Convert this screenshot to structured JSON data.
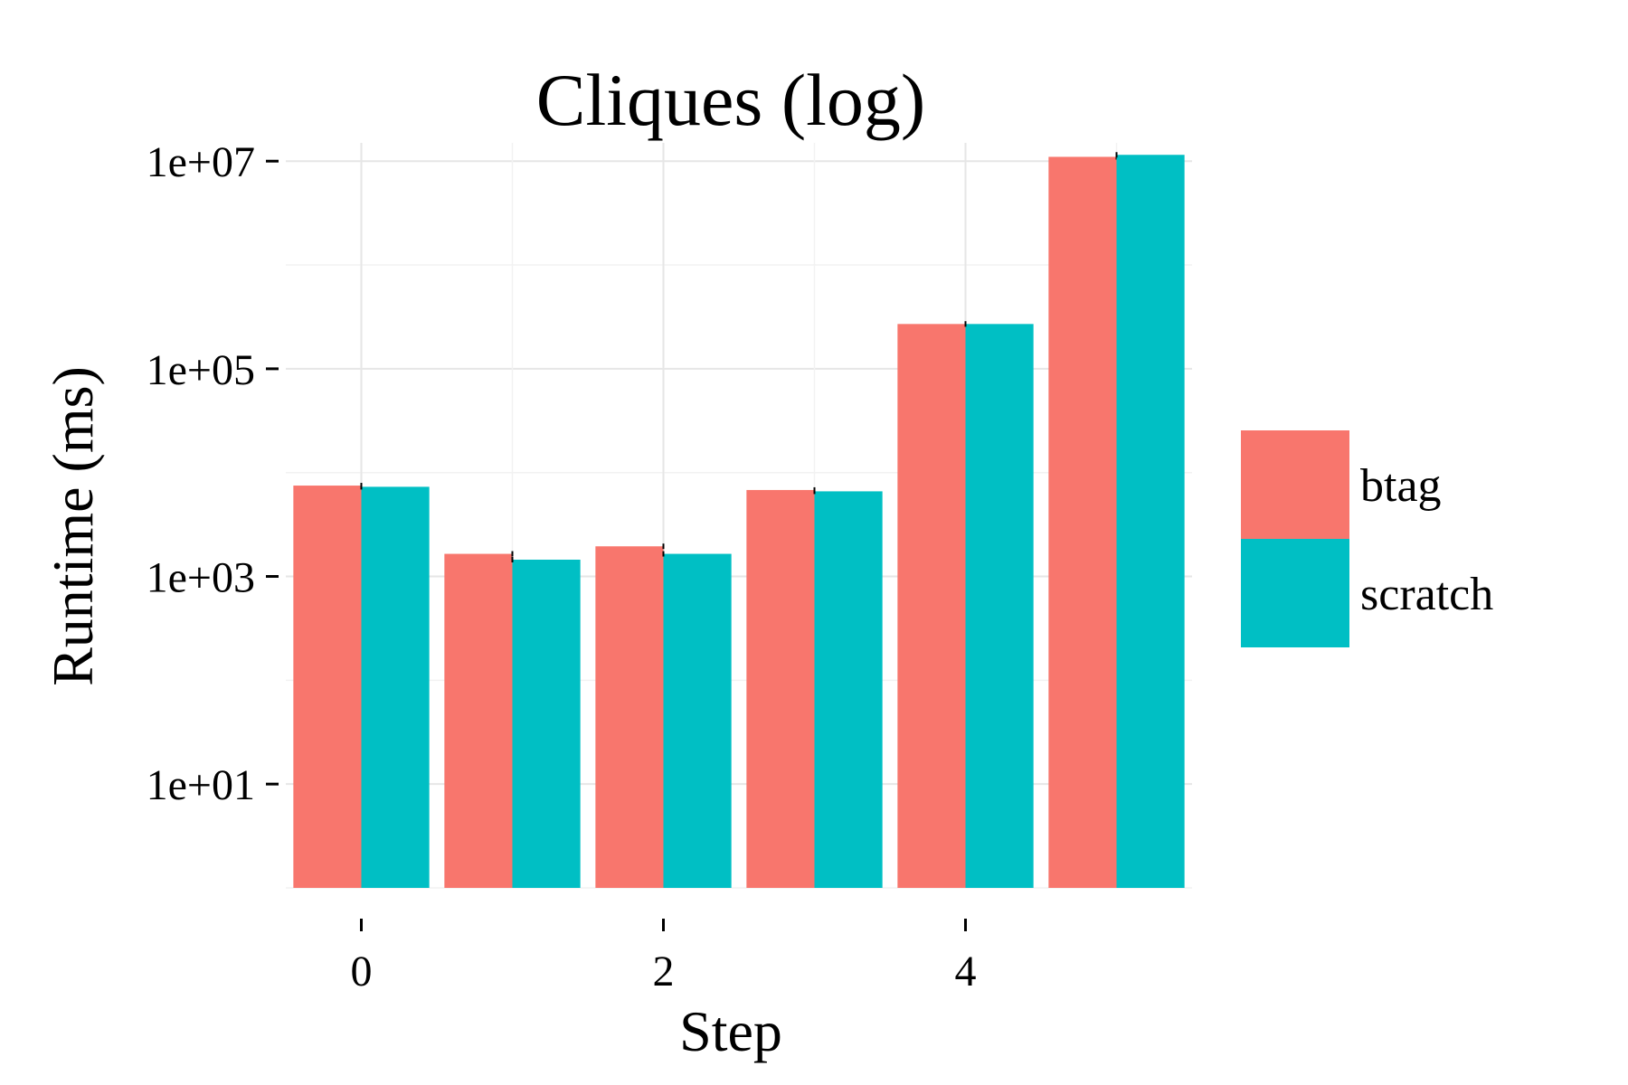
{
  "chart_data": {
    "type": "bar",
    "title": "Cliques (log)",
    "xlabel": "Step",
    "ylabel": "Runtime (ms)",
    "y_scale": "log10",
    "ylim": [
      1,
      15000000
    ],
    "x_ticks": [
      0,
      2,
      4
    ],
    "y_ticks": [
      {
        "value": 10,
        "label": "1e+01"
      },
      {
        "value": 1000,
        "label": "1e+03"
      },
      {
        "value": 100000,
        "label": "1e+05"
      },
      {
        "value": 10000000,
        "label": "1e+07"
      }
    ],
    "categories": [
      0,
      1,
      2,
      3,
      4,
      5
    ],
    "series": [
      {
        "name": "btag",
        "color": "#F8766D",
        "values": [
          7500,
          1650,
          1950,
          6800,
          270000,
          11000000
        ]
      },
      {
        "name": "scratch",
        "color": "#00BFC4",
        "values": [
          7300,
          1450,
          1650,
          6600,
          270000,
          11500000
        ]
      }
    ],
    "grid": true,
    "legend_position": "right"
  }
}
